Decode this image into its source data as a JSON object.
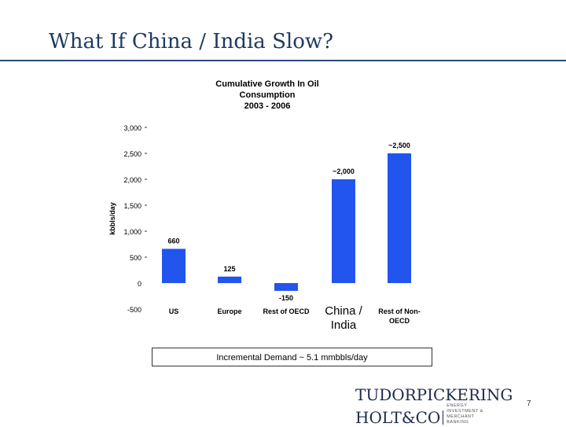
{
  "slide": {
    "title": "What If China / India Slow?",
    "page_number": "7"
  },
  "chart_data": {
    "type": "bar",
    "title_lines": [
      "Cumulative Growth In Oil",
      "Consumption",
      "2003 - 2006"
    ],
    "ylabel": "kbbls/day",
    "ylim": [
      -500,
      3000
    ],
    "yticks": [
      3000,
      2500,
      2000,
      1500,
      1000,
      500,
      0,
      -500
    ],
    "ytick_labels": [
      "3,000",
      "2,500",
      "2,000",
      "1,500",
      "1,000",
      "500",
      "0",
      "-500"
    ],
    "categories": [
      {
        "label": "US",
        "lines": [
          "US"
        ],
        "large": false
      },
      {
        "label": "Europe",
        "lines": [
          "Europe"
        ],
        "large": false
      },
      {
        "label": "Rest of OECD",
        "lines": [
          "Rest of OECD"
        ],
        "large": false
      },
      {
        "label": "China / India",
        "lines": [
          "China /",
          "India"
        ],
        "large": true
      },
      {
        "label": "Rest of Non-OECD",
        "lines": [
          "Rest of Non-",
          "OECD"
        ],
        "large": false
      }
    ],
    "values": [
      660,
      125,
      -150,
      2000,
      2500
    ],
    "data_labels": [
      "660",
      "125",
      "-150",
      "~2,000",
      "~2,500"
    ],
    "bar_color": "#2255ee",
    "grid": false
  },
  "note": "Incremental Demand ~ 5.1 mmbbls/day",
  "logo": {
    "line1": "TUDORPICKERING",
    "line2": "HOLT&CO",
    "tagline_1": "ENERGY INVESTMENT &",
    "tagline_2": "MERCHANT BANKING"
  },
  "colors": {
    "title": "#1f3a5f",
    "rule": "#2b4c7e",
    "bar": "#2255ee"
  }
}
